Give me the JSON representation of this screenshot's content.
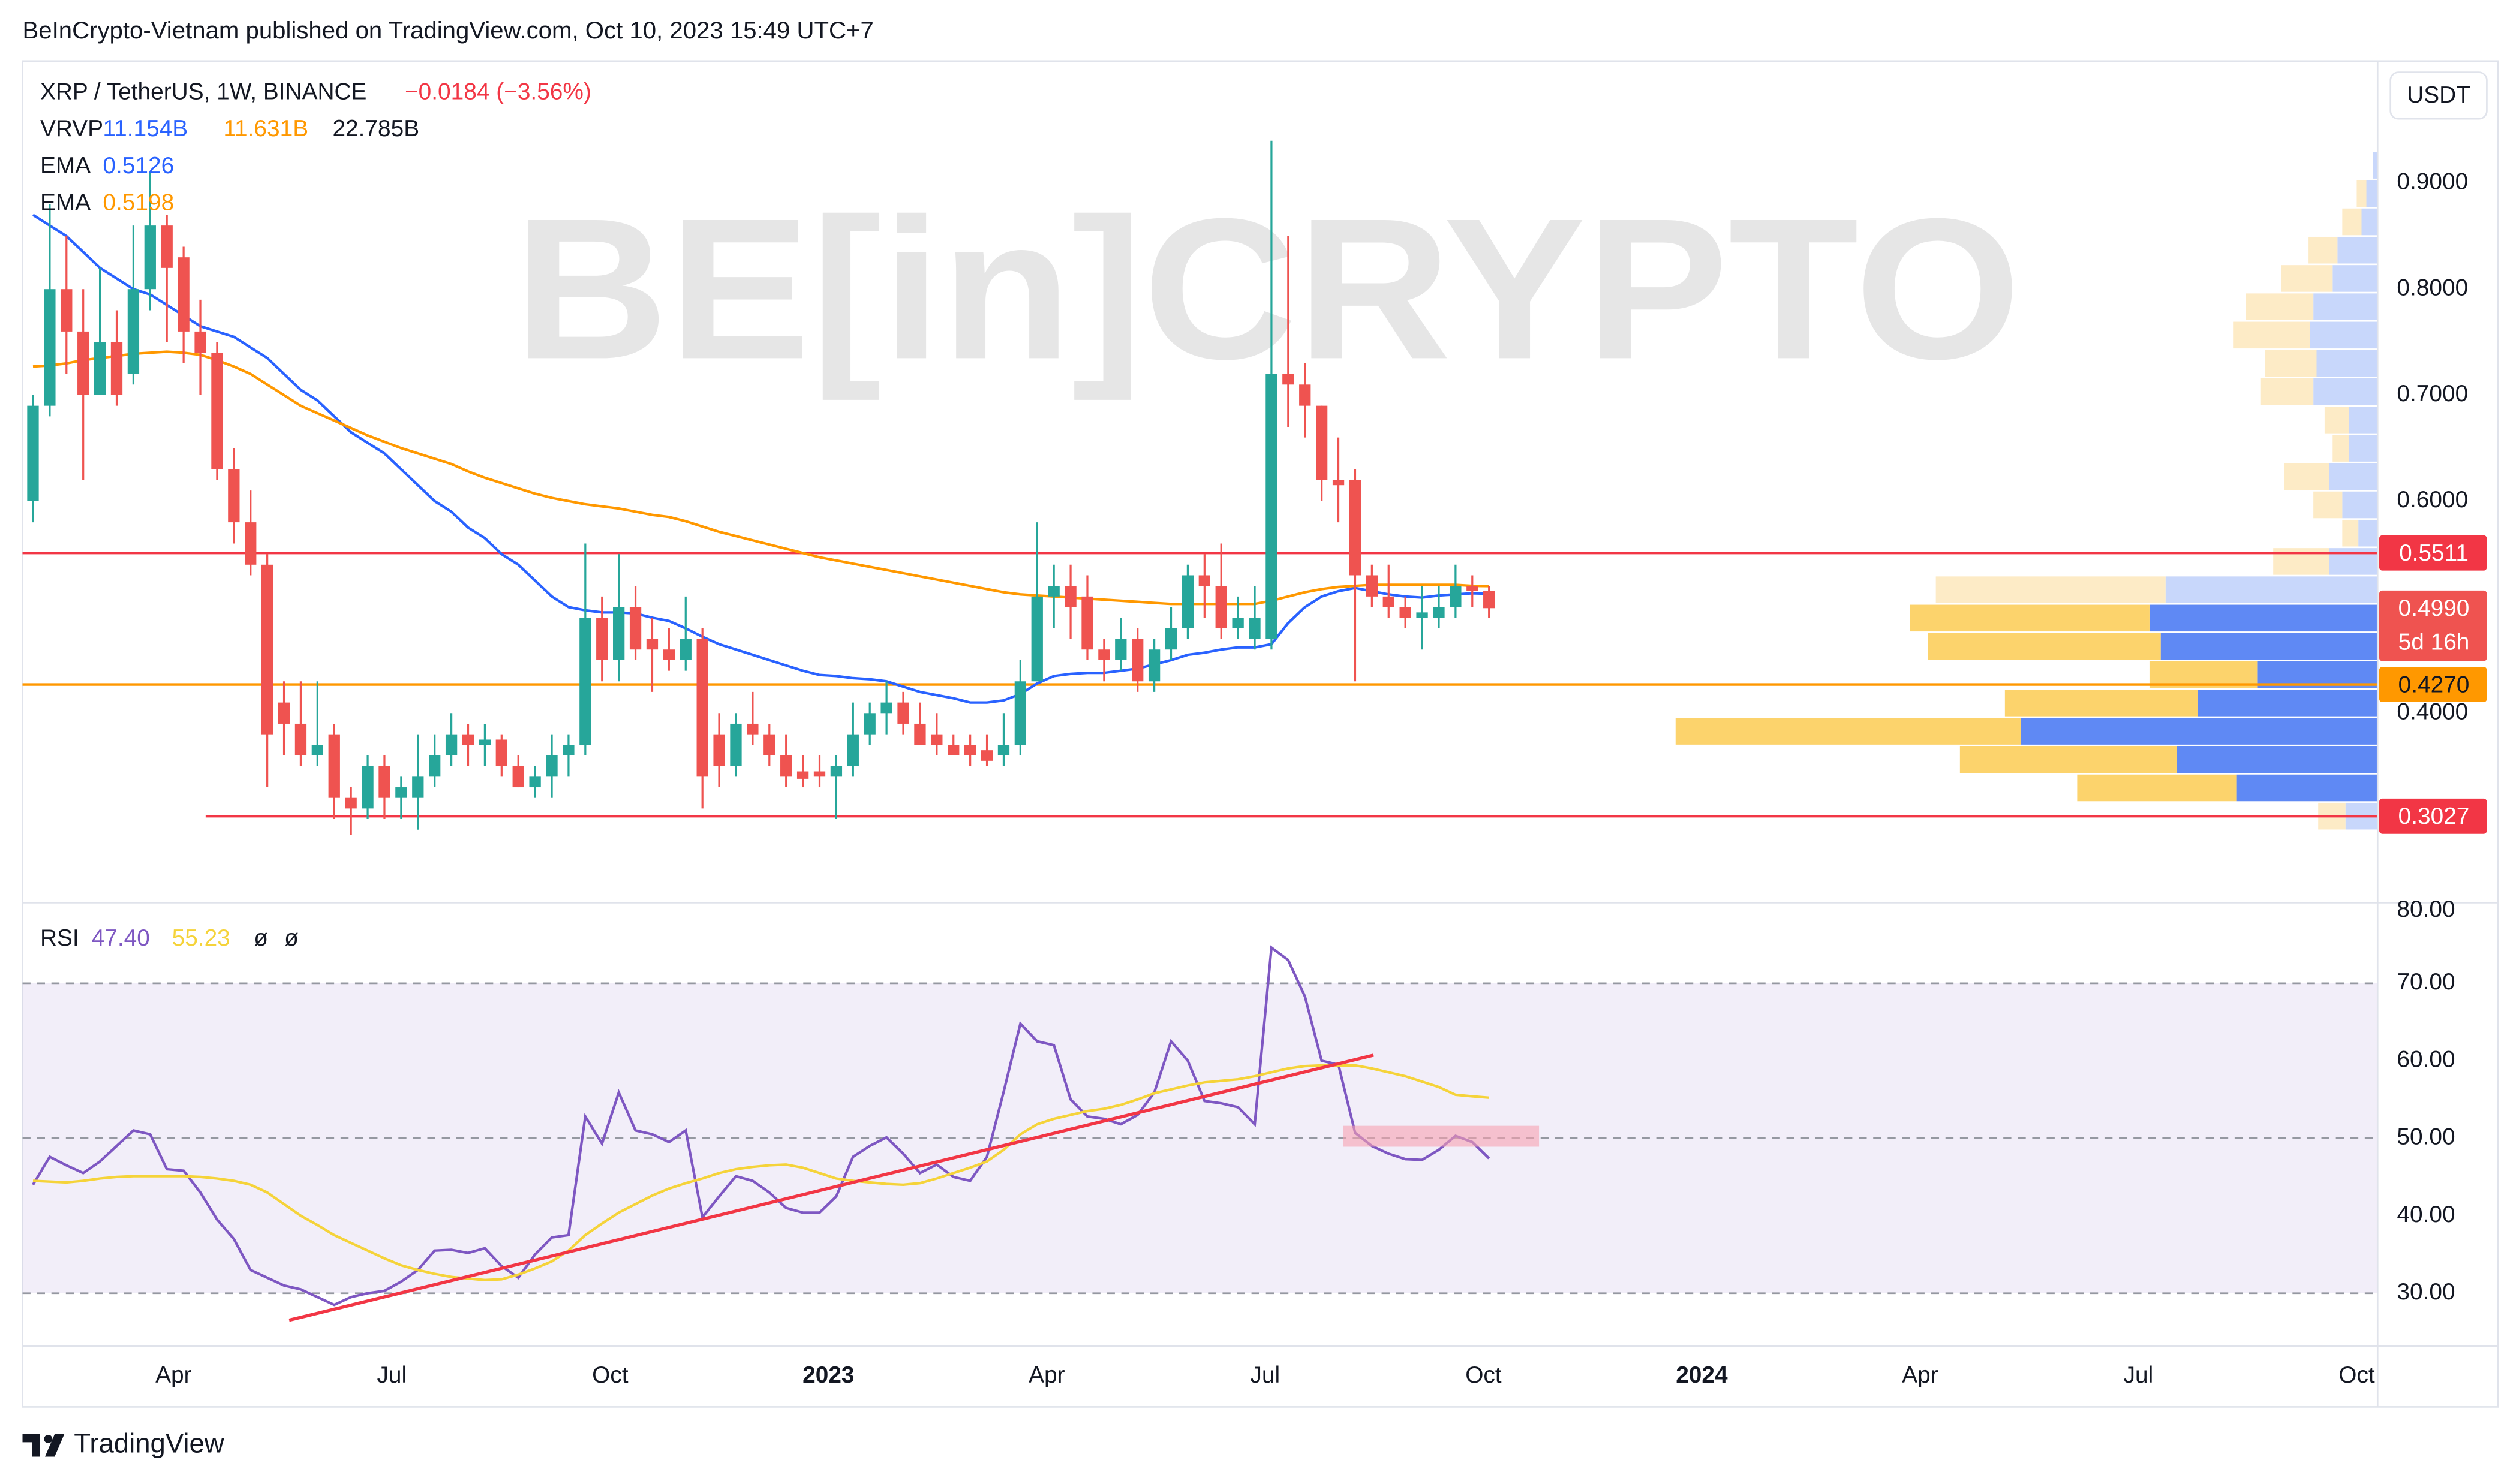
{
  "page": {
    "header": "BeInCrypto-Vietnam published on TradingView.com, Oct 10, 2023 15:49 UTC+7",
    "footer": "TradingView"
  },
  "chart_data": [
    {
      "type": "candlestick",
      "symbol": "XRP / TetherUS, 1W, BINANCE",
      "change": "−0.0184 (−3.56%)",
      "watermark": "BE[in]CRYPTO",
      "axis_unit": "USDT",
      "up_color": "#26a69a",
      "down_color": "#ef5350",
      "xlim": [
        "2022-02",
        "2024-10"
      ],
      "xticks": [
        {
          "value": "2022-04",
          "label": "Apr"
        },
        {
          "value": "2022-07",
          "label": "Jul"
        },
        {
          "value": "2022-10",
          "label": "Oct"
        },
        {
          "value": "2023-01",
          "label": "2023"
        },
        {
          "value": "2023-04",
          "label": "Apr"
        },
        {
          "value": "2023-07",
          "label": "Jul"
        },
        {
          "value": "2023-10",
          "label": "Oct"
        },
        {
          "value": "2024-01",
          "label": "2024"
        },
        {
          "value": "2024-04",
          "label": "Apr"
        },
        {
          "value": "2024-07",
          "label": "Jul"
        },
        {
          "value": "2024-10",
          "label": "Oct"
        }
      ],
      "ylim": [
        0.2212,
        1.0152
      ],
      "yticks": [
        {
          "value": 0.4,
          "label": "0.4000"
        },
        {
          "value": 0.6,
          "label": "0.6000"
        },
        {
          "value": 0.7,
          "label": "0.7000"
        },
        {
          "value": 0.8,
          "label": "0.8000"
        },
        {
          "value": 0.9,
          "label": "0.9000"
        }
      ],
      "candles": [
        [
          0.6,
          0.7,
          0.58,
          0.69
        ],
        [
          0.69,
          0.88,
          0.68,
          0.8
        ],
        [
          0.8,
          0.85,
          0.72,
          0.76
        ],
        [
          0.76,
          0.8,
          0.62,
          0.7
        ],
        [
          0.7,
          0.82,
          0.7,
          0.75
        ],
        [
          0.75,
          0.78,
          0.69,
          0.7
        ],
        [
          0.72,
          0.86,
          0.71,
          0.8
        ],
        [
          0.8,
          0.91,
          0.78,
          0.86
        ],
        [
          0.86,
          0.87,
          0.75,
          0.82
        ],
        [
          0.83,
          0.84,
          0.73,
          0.76
        ],
        [
          0.76,
          0.79,
          0.7,
          0.74
        ],
        [
          0.74,
          0.75,
          0.62,
          0.63
        ],
        [
          0.63,
          0.65,
          0.56,
          0.58
        ],
        [
          0.58,
          0.61,
          0.53,
          0.54
        ],
        [
          0.54,
          0.55,
          0.33,
          0.38
        ],
        [
          0.41,
          0.43,
          0.36,
          0.39
        ],
        [
          0.39,
          0.43,
          0.35,
          0.36
        ],
        [
          0.36,
          0.43,
          0.35,
          0.37
        ],
        [
          0.38,
          0.39,
          0.3,
          0.32
        ],
        [
          0.32,
          0.33,
          0.285,
          0.31
        ],
        [
          0.31,
          0.36,
          0.3,
          0.35
        ],
        [
          0.35,
          0.36,
          0.3,
          0.32
        ],
        [
          0.32,
          0.34,
          0.3,
          0.33
        ],
        [
          0.32,
          0.38,
          0.29,
          0.34
        ],
        [
          0.34,
          0.38,
          0.33,
          0.36
        ],
        [
          0.36,
          0.4,
          0.35,
          0.38
        ],
        [
          0.38,
          0.39,
          0.35,
          0.37
        ],
        [
          0.37,
          0.39,
          0.35,
          0.375
        ],
        [
          0.375,
          0.38,
          0.34,
          0.35
        ],
        [
          0.35,
          0.36,
          0.33,
          0.33
        ],
        [
          0.33,
          0.35,
          0.32,
          0.34
        ],
        [
          0.34,
          0.38,
          0.32,
          0.36
        ],
        [
          0.36,
          0.38,
          0.34,
          0.37
        ],
        [
          0.37,
          0.56,
          0.36,
          0.49
        ],
        [
          0.49,
          0.51,
          0.43,
          0.45
        ],
        [
          0.45,
          0.55,
          0.43,
          0.5
        ],
        [
          0.5,
          0.52,
          0.45,
          0.46
        ],
        [
          0.47,
          0.49,
          0.42,
          0.46
        ],
        [
          0.46,
          0.48,
          0.44,
          0.45
        ],
        [
          0.45,
          0.51,
          0.44,
          0.47
        ],
        [
          0.47,
          0.48,
          0.31,
          0.34
        ],
        [
          0.38,
          0.4,
          0.33,
          0.35
        ],
        [
          0.35,
          0.4,
          0.34,
          0.39
        ],
        [
          0.39,
          0.42,
          0.37,
          0.38
        ],
        [
          0.38,
          0.39,
          0.35,
          0.36
        ],
        [
          0.36,
          0.38,
          0.33,
          0.34
        ],
        [
          0.345,
          0.36,
          0.33,
          0.338
        ],
        [
          0.345,
          0.36,
          0.33,
          0.34
        ],
        [
          0.34,
          0.36,
          0.3,
          0.35
        ],
        [
          0.35,
          0.41,
          0.34,
          0.38
        ],
        [
          0.38,
          0.41,
          0.37,
          0.4
        ],
        [
          0.4,
          0.43,
          0.38,
          0.41
        ],
        [
          0.41,
          0.42,
          0.38,
          0.39
        ],
        [
          0.39,
          0.41,
          0.37,
          0.37
        ],
        [
          0.38,
          0.4,
          0.36,
          0.37
        ],
        [
          0.37,
          0.38,
          0.36,
          0.36
        ],
        [
          0.37,
          0.38,
          0.35,
          0.36
        ],
        [
          0.365,
          0.38,
          0.35,
          0.355
        ],
        [
          0.36,
          0.4,
          0.35,
          0.37
        ],
        [
          0.37,
          0.45,
          0.36,
          0.43
        ],
        [
          0.43,
          0.58,
          0.43,
          0.51
        ],
        [
          0.51,
          0.54,
          0.48,
          0.52
        ],
        [
          0.52,
          0.54,
          0.47,
          0.5
        ],
        [
          0.51,
          0.53,
          0.45,
          0.46
        ],
        [
          0.46,
          0.47,
          0.43,
          0.45
        ],
        [
          0.45,
          0.49,
          0.44,
          0.47
        ],
        [
          0.47,
          0.48,
          0.42,
          0.43
        ],
        [
          0.43,
          0.47,
          0.42,
          0.46
        ],
        [
          0.46,
          0.5,
          0.45,
          0.48
        ],
        [
          0.48,
          0.54,
          0.47,
          0.53
        ],
        [
          0.53,
          0.55,
          0.49,
          0.52
        ],
        [
          0.52,
          0.56,
          0.47,
          0.48
        ],
        [
          0.48,
          0.51,
          0.47,
          0.49
        ],
        [
          0.47,
          0.52,
          0.46,
          0.49
        ],
        [
          0.47,
          0.94,
          0.46,
          0.72
        ],
        [
          0.72,
          0.85,
          0.67,
          0.71
        ],
        [
          0.71,
          0.73,
          0.66,
          0.69
        ],
        [
          0.69,
          0.69,
          0.6,
          0.62
        ],
        [
          0.62,
          0.66,
          0.58,
          0.615
        ],
        [
          0.62,
          0.63,
          0.43,
          0.53
        ],
        [
          0.53,
          0.54,
          0.5,
          0.51
        ],
        [
          0.51,
          0.54,
          0.49,
          0.5
        ],
        [
          0.5,
          0.51,
          0.48,
          0.49
        ],
        [
          0.49,
          0.52,
          0.46,
          0.495
        ],
        [
          0.49,
          0.52,
          0.48,
          0.5
        ],
        [
          0.5,
          0.54,
          0.49,
          0.52
        ],
        [
          0.52,
          0.53,
          0.5,
          0.515
        ],
        [
          0.515,
          0.52,
          0.49,
          0.499
        ]
      ],
      "series": [
        {
          "name": "EMA",
          "color": "#2962ff",
          "values": [
            0.87,
            0.86,
            0.85,
            0.835,
            0.82,
            0.81,
            0.8,
            0.795,
            0.785,
            0.775,
            0.765,
            0.76,
            0.755,
            0.745,
            0.735,
            0.72,
            0.705,
            0.695,
            0.68,
            0.665,
            0.655,
            0.645,
            0.63,
            0.615,
            0.6,
            0.59,
            0.575,
            0.565,
            0.55,
            0.54,
            0.525,
            0.51,
            0.5,
            0.497,
            0.495,
            0.495,
            0.494,
            0.49,
            0.487,
            0.48,
            0.472,
            0.465,
            0.46,
            0.455,
            0.45,
            0.445,
            0.44,
            0.436,
            0.435,
            0.433,
            0.432,
            0.43,
            0.425,
            0.42,
            0.417,
            0.414,
            0.41,
            0.41,
            0.412,
            0.418,
            0.428,
            0.435,
            0.437,
            0.438,
            0.438,
            0.44,
            0.442,
            0.446,
            0.45,
            0.455,
            0.457,
            0.46,
            0.462,
            0.462,
            0.465,
            0.485,
            0.5,
            0.51,
            0.515,
            0.518,
            0.515,
            0.512,
            0.51,
            0.509,
            0.511,
            0.512,
            0.513,
            0.5126
          ]
        },
        {
          "name": "EMA",
          "color": "#ff9800",
          "values": [
            0.727,
            0.728,
            0.73,
            0.733,
            0.735,
            0.737,
            0.739,
            0.74,
            0.741,
            0.74,
            0.738,
            0.733,
            0.727,
            0.72,
            0.71,
            0.7,
            0.69,
            0.683,
            0.676,
            0.669,
            0.662,
            0.656,
            0.65,
            0.645,
            0.64,
            0.635,
            0.628,
            0.622,
            0.617,
            0.612,
            0.607,
            0.603,
            0.6,
            0.597,
            0.595,
            0.593,
            0.59,
            0.587,
            0.585,
            0.581,
            0.576,
            0.571,
            0.567,
            0.563,
            0.559,
            0.555,
            0.551,
            0.547,
            0.544,
            0.541,
            0.538,
            0.535,
            0.532,
            0.529,
            0.526,
            0.523,
            0.52,
            0.517,
            0.514,
            0.512,
            0.511,
            0.51,
            0.509,
            0.508,
            0.507,
            0.506,
            0.505,
            0.504,
            0.503,
            0.503,
            0.503,
            0.503,
            0.503,
            0.503,
            0.506,
            0.51,
            0.514,
            0.517,
            0.519,
            0.52,
            0.521,
            0.521,
            0.521,
            0.521,
            0.521,
            0.521,
            0.52,
            0.5198
          ]
        }
      ],
      "levels": [
        {
          "value": 0.5511,
          "label": "0.5511",
          "color": "#f23645",
          "text_color": "#ffffff"
        },
        {
          "value": 0.427,
          "label": "0.4270",
          "color": "#ff9800",
          "text_color": "#131722"
        },
        {
          "value": 0.3027,
          "label": "0.3027",
          "color": "#f23645",
          "text_color": "#ffffff"
        }
      ],
      "last_price": {
        "value": 0.499,
        "label": "0.4990",
        "countdown": "5d 16h",
        "color": "#ef5350"
      },
      "volume_profile": {
        "name": "VRVP",
        "totals": [
          "11.154B",
          "11.631B",
          "22.785B"
        ],
        "total_colors": [
          "#2962ff",
          "#ff9800",
          "#131722"
        ],
        "colors": {
          "up": "#5f89f4",
          "down": "#fcd36c",
          "up_pale": "#c8d7fb",
          "down_pale": "#fdebc6"
        },
        "bins": [
          0.2894,
          0.3161,
          0.3428,
          0.3695,
          0.3962,
          0.4229,
          0.4496,
          0.4763,
          0.503,
          0.5297,
          0.5564,
          0.5831,
          0.6098,
          0.6365,
          0.6632,
          0.6899,
          0.7166,
          0.7433,
          0.77,
          0.7967,
          0.8234,
          0.8501,
          0.8768,
          0.9035,
          0.9302
        ],
        "up": [
          0.16,
          0.704,
          1.0,
          1.776,
          0.896,
          0.6,
          1.08,
          1.136,
          1.056,
          0.24,
          0.096,
          0.176,
          0.24,
          0.144,
          0.144,
          0.32,
          0.304,
          0.336,
          0.32,
          0.224,
          0.2,
          0.08,
          0.056,
          0.024
        ],
        "down": [
          0.136,
          0.792,
          1.08,
          1.72,
          0.96,
          0.536,
          1.16,
          1.192,
          1.144,
          0.28,
          0.08,
          0.144,
          0.224,
          0.08,
          0.12,
          0.264,
          0.256,
          0.384,
          0.336,
          0.256,
          0.144,
          0.096,
          0.048,
          0
        ],
        "value_area": [
          false,
          true,
          true,
          true,
          true,
          true,
          true,
          true,
          false,
          false,
          false,
          false,
          false,
          false,
          false,
          false,
          false,
          false,
          false,
          false,
          false,
          false,
          false,
          false
        ]
      }
    },
    {
      "type": "line",
      "ylim": [
        23.2,
        80.2
      ],
      "yticks": [
        {
          "value": 30,
          "label": "30.00"
        },
        {
          "value": 40,
          "label": "40.00"
        },
        {
          "value": 50,
          "label": "50.00"
        },
        {
          "value": 60,
          "label": "60.00"
        },
        {
          "value": 70,
          "label": "70.00"
        },
        {
          "value": 80,
          "label": "80.00"
        }
      ],
      "bands": [
        30,
        50,
        70
      ],
      "band_color": "#7e57c2",
      "extra_labels": [
        "ø",
        "ø"
      ],
      "series": [
        {
          "name": "RSI",
          "value_label": "47.40",
          "color": "#7e57c2",
          "values": [
            44,
            47.6,
            46.5,
            45.5,
            47,
            49,
            51,
            50.5,
            46,
            45.8,
            43,
            39.5,
            37,
            33,
            32,
            31,
            30.5,
            29.5,
            28.5,
            29.5,
            30,
            30.3,
            31.5,
            33,
            35.5,
            35.6,
            35.2,
            35.8,
            33.5,
            32,
            35,
            37.2,
            37.5,
            52.8,
            49.3,
            55.9,
            51,
            50.5,
            49.5,
            51,
            39.8,
            42.5,
            45.1,
            44.5,
            43,
            41,
            40.4,
            40.4,
            42.5,
            47.6,
            49,
            50.1,
            48,
            45.5,
            46.6,
            45,
            44.5,
            47.6,
            56,
            64.8,
            62.5,
            62,
            55,
            52.8,
            52.5,
            51.8,
            53,
            55.9,
            62.5,
            60,
            54.8,
            54.5,
            54,
            51.8,
            74.6,
            73,
            68.3,
            60,
            59.5,
            50.7,
            49,
            48,
            47.3,
            47.2,
            48.5,
            50.3,
            49.5,
            47.4
          ]
        },
        {
          "value_label": "55.23",
          "color": "#f5d33a",
          "values": [
            44.5,
            44.4,
            44.3,
            44.5,
            44.8,
            45,
            45.1,
            45.1,
            45.1,
            45.1,
            45,
            44.8,
            44.5,
            44,
            43,
            41.5,
            40,
            38.8,
            37.5,
            36.5,
            35.5,
            34.5,
            33.6,
            33,
            32.5,
            32.1,
            31.9,
            31.7,
            31.8,
            32.4,
            33.2,
            34.1,
            35.5,
            37.5,
            39,
            40.4,
            41.5,
            42.6,
            43.5,
            44.2,
            44.8,
            45.5,
            46,
            46.3,
            46.5,
            46.6,
            46.2,
            45.5,
            44.8,
            44.5,
            44.3,
            44.1,
            44,
            44.2,
            44.8,
            45.5,
            46.2,
            47,
            48.5,
            50.5,
            51.8,
            52.5,
            53,
            53.5,
            53.8,
            54.3,
            55,
            55.8,
            56.3,
            56.8,
            57.2,
            57.4,
            57.6,
            58,
            58.5,
            59,
            59.3,
            59.4,
            59.4,
            59.4,
            59,
            58.5,
            58,
            57.3,
            56.6,
            55.6,
            55.4,
            55.23
          ]
        }
      ]
    }
  ]
}
